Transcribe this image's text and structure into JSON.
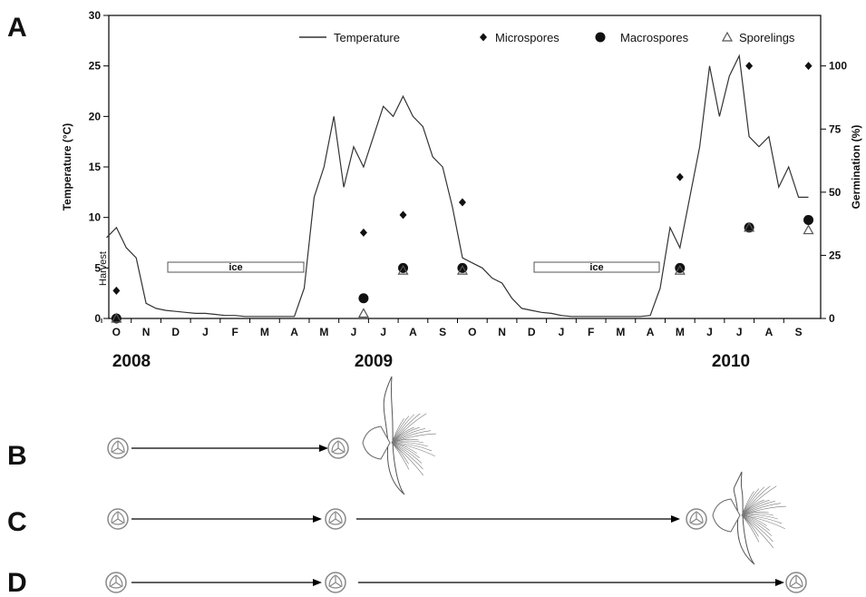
{
  "chart_data": {
    "type": "line",
    "panel_label": "A",
    "y_label": "Temperature (°C)",
    "y2_label": "Germination (%)",
    "categories": [
      null,
      "O",
      null,
      null,
      "N",
      null,
      null,
      "D",
      null,
      null,
      "J",
      null,
      null,
      "F",
      null,
      null,
      "M",
      null,
      null,
      "A",
      null,
      null,
      "M",
      null,
      null,
      "J",
      null,
      null,
      "J",
      null,
      null,
      "A",
      null,
      null,
      "S",
      null,
      null,
      "O",
      null,
      null,
      "N",
      null,
      null,
      "D",
      null,
      null,
      "J",
      null,
      null,
      "F",
      null,
      null,
      "M",
      null,
      null,
      "A",
      null,
      null,
      "M",
      null,
      null,
      "J",
      null,
      null,
      "J",
      null,
      null,
      "A",
      null,
      null,
      "S",
      null
    ],
    "years": [
      "2008",
      "2009",
      "2010"
    ],
    "annotations": [
      "Harvest",
      "ice",
      "ice"
    ],
    "ylim": [
      0,
      30
    ],
    "yticks": [
      0,
      5,
      10,
      15,
      20,
      25,
      30
    ],
    "y2lim": [
      0,
      120
    ],
    "y2ticks": [
      0,
      25,
      50,
      75,
      100
    ],
    "series": [
      {
        "name": "Temperature",
        "color": "#333333",
        "marker": "line",
        "values": [
          8,
          9,
          7,
          6,
          1.5,
          1,
          0.8,
          0.7,
          0.6,
          0.5,
          0.5,
          0.4,
          0.3,
          0.3,
          0.2,
          0.2,
          0.2,
          0.2,
          0.2,
          0.2,
          3,
          12,
          15,
          20,
          13,
          17,
          15,
          18,
          21,
          20,
          22,
          20,
          19,
          16,
          15,
          11,
          6,
          5.5,
          5,
          4,
          3.5,
          2,
          1,
          0.8,
          0.6,
          0.5,
          0.3,
          0.2,
          0.2,
          0.2,
          0.2,
          0.2,
          0.2,
          0.2,
          0.2,
          0.3,
          3,
          9,
          7,
          12,
          17,
          25,
          20,
          24,
          26,
          18,
          17,
          18,
          13,
          15,
          12,
          12
        ]
      },
      {
        "name": "Microspores",
        "color": "#111111",
        "marker": "diamond",
        "axis": "y2",
        "values": [
          null,
          11,
          null,
          null,
          null,
          null,
          null,
          null,
          null,
          null,
          null,
          null,
          null,
          null,
          null,
          null,
          null,
          null,
          null,
          null,
          null,
          null,
          null,
          null,
          null,
          null,
          34,
          null,
          null,
          null,
          41,
          null,
          null,
          null,
          null,
          null,
          46,
          null,
          null,
          null,
          null,
          null,
          null,
          null,
          null,
          null,
          null,
          null,
          null,
          null,
          null,
          null,
          null,
          null,
          null,
          null,
          null,
          null,
          56,
          null,
          null,
          null,
          null,
          null,
          null,
          100,
          null,
          null,
          null,
          null,
          null,
          100
        ]
      },
      {
        "name": "Macrospores",
        "color": "#111111",
        "marker": "circle",
        "axis": "y2",
        "values": [
          null,
          0,
          null,
          null,
          null,
          null,
          null,
          null,
          null,
          null,
          null,
          null,
          null,
          null,
          null,
          null,
          null,
          null,
          null,
          null,
          null,
          null,
          null,
          null,
          null,
          null,
          8,
          null,
          null,
          null,
          20,
          null,
          null,
          null,
          null,
          null,
          20,
          null,
          null,
          null,
          null,
          null,
          null,
          null,
          null,
          null,
          null,
          null,
          null,
          null,
          null,
          null,
          null,
          null,
          null,
          null,
          null,
          null,
          20,
          null,
          null,
          null,
          null,
          null,
          null,
          36,
          null,
          null,
          null,
          null,
          null,
          39
        ]
      },
      {
        "name": "Sporelings",
        "color": "#555555",
        "marker": "triangle",
        "axis": "y2",
        "values": [
          null,
          0,
          null,
          null,
          null,
          null,
          null,
          null,
          null,
          null,
          null,
          null,
          null,
          null,
          null,
          null,
          null,
          null,
          null,
          null,
          null,
          null,
          null,
          null,
          null,
          null,
          2,
          null,
          null,
          null,
          19,
          null,
          null,
          null,
          null,
          null,
          19,
          null,
          null,
          null,
          null,
          null,
          null,
          null,
          null,
          null,
          null,
          null,
          null,
          null,
          null,
          null,
          null,
          null,
          null,
          null,
          null,
          null,
          19,
          null,
          null,
          null,
          null,
          null,
          null,
          36,
          null,
          null,
          null,
          null,
          null,
          35
        ]
      }
    ]
  },
  "diagram_panels": [
    "B",
    "C",
    "D"
  ]
}
